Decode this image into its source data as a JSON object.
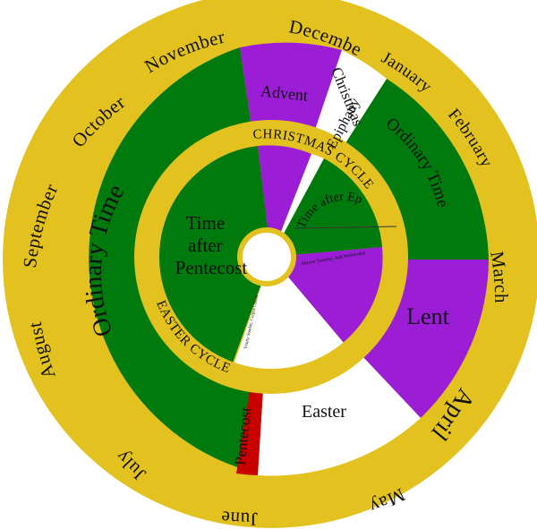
{
  "colors": {
    "gold": "#e3c21f",
    "green": "#007a0d",
    "purple": "#9b1ed6",
    "white": "#ffffff",
    "red": "#c90000",
    "text": "#111111"
  },
  "months": [
    {
      "label": "November"
    },
    {
      "label": "December"
    },
    {
      "label": "January"
    },
    {
      "label": "February"
    },
    {
      "label": "March"
    },
    {
      "label": "April"
    },
    {
      "label": "May"
    },
    {
      "label": "June"
    },
    {
      "label": "July"
    },
    {
      "label": "August"
    },
    {
      "label": "September"
    },
    {
      "label": "October"
    }
  ],
  "outer_seasons": [
    {
      "name": "Advent",
      "color": "purple"
    },
    {
      "name": "Christmas",
      "color": "white"
    },
    {
      "name": "Epiphany",
      "color": "white"
    },
    {
      "name": "Ordinary Time",
      "color": "green"
    },
    {
      "name": "Lent",
      "color": "purple"
    },
    {
      "name": "Easter",
      "color": "white"
    },
    {
      "name": "Pentecost",
      "color": "red"
    },
    {
      "name": "Ordinary Time",
      "color": "green"
    }
  ],
  "inner_seasons": [
    {
      "name": "Time after Pentecost",
      "color": "green"
    },
    {
      "name": "Time after Epiphany",
      "color": "green"
    },
    {
      "name": "Shrove Tuesday, Ash Wednesday",
      "color": "purple"
    },
    {
      "name": "Trinity Sunday, Corpus Christi",
      "color": "white"
    }
  ],
  "cycles": {
    "christmas": "CHRISTMAS CYCLE",
    "easter": "EASTER CYCLE"
  }
}
